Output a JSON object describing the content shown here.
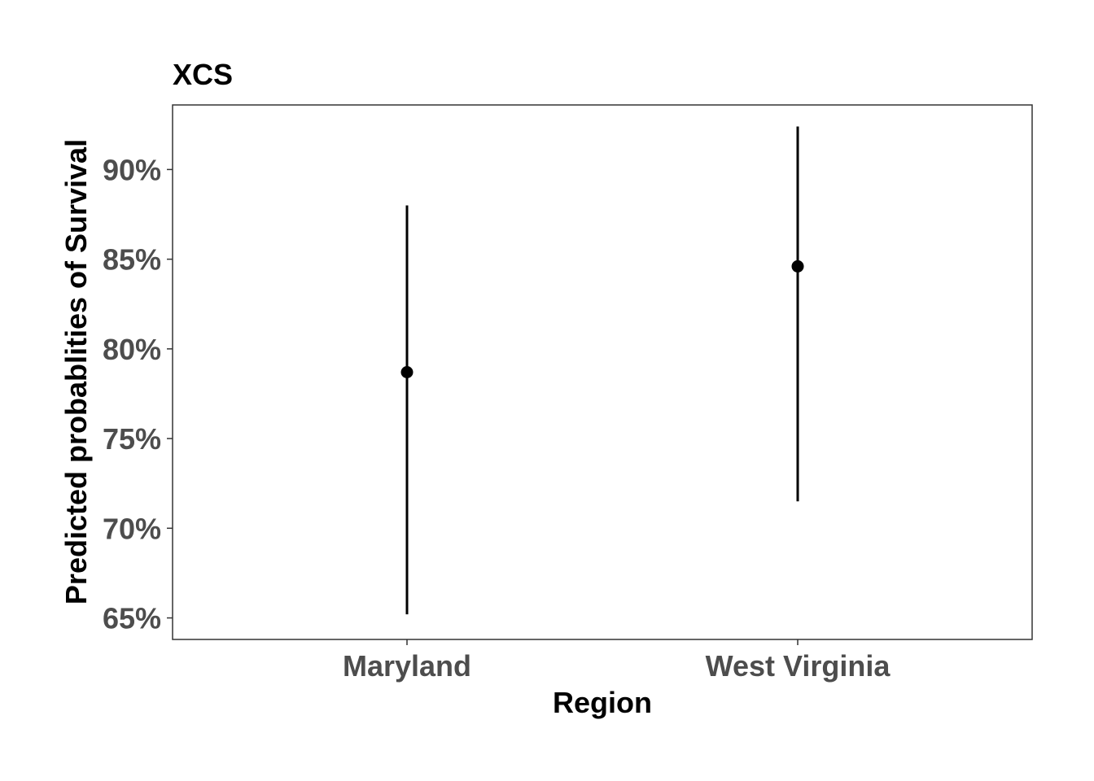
{
  "chart_data": {
    "type": "pointrange",
    "title": "XCS",
    "xlabel": "Region",
    "ylabel": "Predicted probablities of Survival",
    "categories": [
      "Maryland",
      "West Virginia"
    ],
    "estimates": [
      0.787,
      0.846
    ],
    "lower": [
      0.652,
      0.715
    ],
    "upper": [
      0.88,
      0.924
    ],
    "y_ticks": [
      0.65,
      0.7,
      0.75,
      0.8,
      0.85,
      0.9
    ],
    "y_tick_labels": [
      "65%",
      "70%",
      "75%",
      "80%",
      "85%",
      "90%"
    ],
    "ylim": [
      0.638,
      0.936
    ],
    "grid": false,
    "colors": {
      "points": "#000000",
      "tick_text": "#4d4d4d",
      "axis": "#333333"
    }
  }
}
